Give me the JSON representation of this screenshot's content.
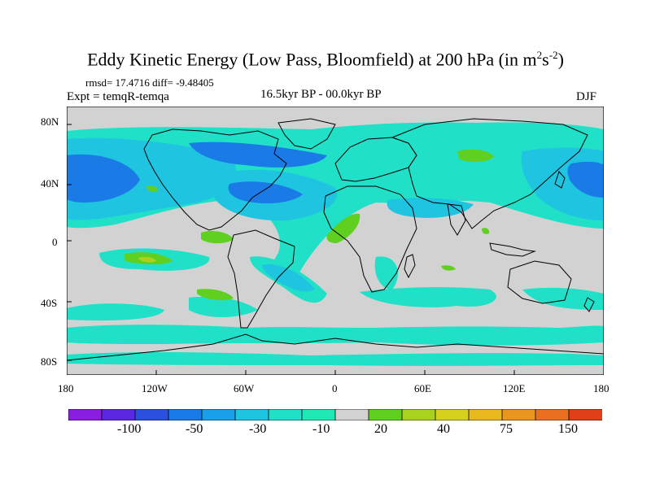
{
  "figure": {
    "title_main": "Eddy Kinetic Energy (Low Pass, Bloomfield) at 200 hPa (in m",
    "title_sup1": "2",
    "title_s": "s",
    "title_sup2": "-2",
    "title_end": ")",
    "stats": "rmsd= 17.4716 diff= -9.48405",
    "experiment": "Expt = temqR-temqa",
    "period": "16.5kyr BP - 00.0kyr BP",
    "season": "DJF"
  },
  "axes": {
    "lat_labels": [
      "80N",
      "40N",
      "0",
      "40S",
      "80S"
    ],
    "lon_labels": [
      "180",
      "120W",
      "60W",
      "0",
      "60E",
      "120E",
      "180"
    ]
  },
  "colorbar": {
    "levels": [
      "-100",
      "-50",
      "-30",
      "-10",
      "20",
      "40",
      "75",
      "150"
    ],
    "colors": [
      "#8a1ee0",
      "#5a28e0",
      "#2b50e0",
      "#1a7ae6",
      "#1aa0e8",
      "#1ec4e0",
      "#20e0c8",
      "#20e8b4",
      "#d2d2d2",
      "#60d020",
      "#a8d21e",
      "#d4d21e",
      "#e8b81e",
      "#e89620",
      "#e87020",
      "#e04018"
    ]
  },
  "colors": {
    "background": "#d2d2d2",
    "strong_negative": "#1a7ae6",
    "moderate_negative": "#1ec4e0",
    "weak_negative": "#20e0c8",
    "weak_positive": "#60d020",
    "moderate_positive": "#a8d21e",
    "coastline": "#000000"
  }
}
